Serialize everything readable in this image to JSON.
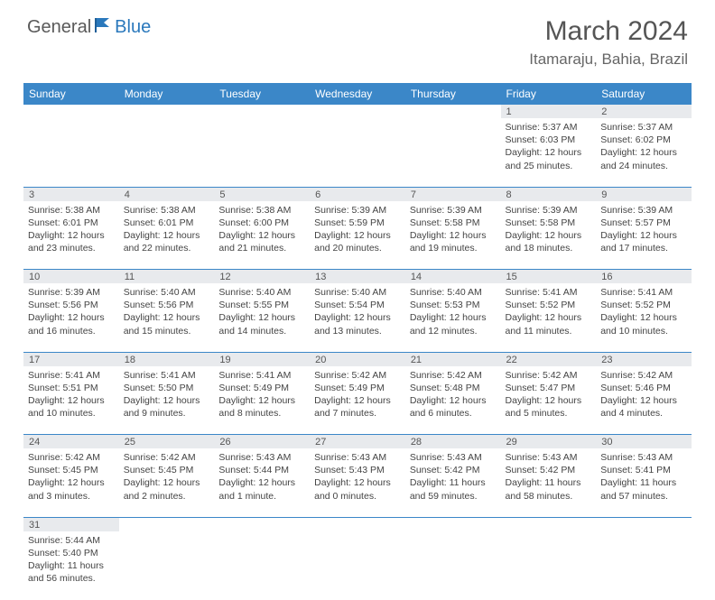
{
  "logo": {
    "general": "General",
    "blue": "Blue"
  },
  "title": "March 2024",
  "location": "Itamaraju, Bahia, Brazil",
  "daynames": [
    "Sunday",
    "Monday",
    "Tuesday",
    "Wednesday",
    "Thursday",
    "Friday",
    "Saturday"
  ],
  "colors": {
    "header_bg": "#3b87c8",
    "header_text": "#ffffff",
    "daynum_bg": "#e8eaed",
    "border": "#3b87c8",
    "logo_blue": "#2a78bc"
  },
  "weeks": [
    {
      "days": [
        {
          "n": "",
          "sunrise": "",
          "sunset": "",
          "daylight": ""
        },
        {
          "n": "",
          "sunrise": "",
          "sunset": "",
          "daylight": ""
        },
        {
          "n": "",
          "sunrise": "",
          "sunset": "",
          "daylight": ""
        },
        {
          "n": "",
          "sunrise": "",
          "sunset": "",
          "daylight": ""
        },
        {
          "n": "",
          "sunrise": "",
          "sunset": "",
          "daylight": ""
        },
        {
          "n": "1",
          "sunrise": "Sunrise: 5:37 AM",
          "sunset": "Sunset: 6:03 PM",
          "daylight": "Daylight: 12 hours and 25 minutes."
        },
        {
          "n": "2",
          "sunrise": "Sunrise: 5:37 AM",
          "sunset": "Sunset: 6:02 PM",
          "daylight": "Daylight: 12 hours and 24 minutes."
        }
      ]
    },
    {
      "days": [
        {
          "n": "3",
          "sunrise": "Sunrise: 5:38 AM",
          "sunset": "Sunset: 6:01 PM",
          "daylight": "Daylight: 12 hours and 23 minutes."
        },
        {
          "n": "4",
          "sunrise": "Sunrise: 5:38 AM",
          "sunset": "Sunset: 6:01 PM",
          "daylight": "Daylight: 12 hours and 22 minutes."
        },
        {
          "n": "5",
          "sunrise": "Sunrise: 5:38 AM",
          "sunset": "Sunset: 6:00 PM",
          "daylight": "Daylight: 12 hours and 21 minutes."
        },
        {
          "n": "6",
          "sunrise": "Sunrise: 5:39 AM",
          "sunset": "Sunset: 5:59 PM",
          "daylight": "Daylight: 12 hours and 20 minutes."
        },
        {
          "n": "7",
          "sunrise": "Sunrise: 5:39 AM",
          "sunset": "Sunset: 5:58 PM",
          "daylight": "Daylight: 12 hours and 19 minutes."
        },
        {
          "n": "8",
          "sunrise": "Sunrise: 5:39 AM",
          "sunset": "Sunset: 5:58 PM",
          "daylight": "Daylight: 12 hours and 18 minutes."
        },
        {
          "n": "9",
          "sunrise": "Sunrise: 5:39 AM",
          "sunset": "Sunset: 5:57 PM",
          "daylight": "Daylight: 12 hours and 17 minutes."
        }
      ]
    },
    {
      "days": [
        {
          "n": "10",
          "sunrise": "Sunrise: 5:39 AM",
          "sunset": "Sunset: 5:56 PM",
          "daylight": "Daylight: 12 hours and 16 minutes."
        },
        {
          "n": "11",
          "sunrise": "Sunrise: 5:40 AM",
          "sunset": "Sunset: 5:56 PM",
          "daylight": "Daylight: 12 hours and 15 minutes."
        },
        {
          "n": "12",
          "sunrise": "Sunrise: 5:40 AM",
          "sunset": "Sunset: 5:55 PM",
          "daylight": "Daylight: 12 hours and 14 minutes."
        },
        {
          "n": "13",
          "sunrise": "Sunrise: 5:40 AM",
          "sunset": "Sunset: 5:54 PM",
          "daylight": "Daylight: 12 hours and 13 minutes."
        },
        {
          "n": "14",
          "sunrise": "Sunrise: 5:40 AM",
          "sunset": "Sunset: 5:53 PM",
          "daylight": "Daylight: 12 hours and 12 minutes."
        },
        {
          "n": "15",
          "sunrise": "Sunrise: 5:41 AM",
          "sunset": "Sunset: 5:52 PM",
          "daylight": "Daylight: 12 hours and 11 minutes."
        },
        {
          "n": "16",
          "sunrise": "Sunrise: 5:41 AM",
          "sunset": "Sunset: 5:52 PM",
          "daylight": "Daylight: 12 hours and 10 minutes."
        }
      ]
    },
    {
      "days": [
        {
          "n": "17",
          "sunrise": "Sunrise: 5:41 AM",
          "sunset": "Sunset: 5:51 PM",
          "daylight": "Daylight: 12 hours and 10 minutes."
        },
        {
          "n": "18",
          "sunrise": "Sunrise: 5:41 AM",
          "sunset": "Sunset: 5:50 PM",
          "daylight": "Daylight: 12 hours and 9 minutes."
        },
        {
          "n": "19",
          "sunrise": "Sunrise: 5:41 AM",
          "sunset": "Sunset: 5:49 PM",
          "daylight": "Daylight: 12 hours and 8 minutes."
        },
        {
          "n": "20",
          "sunrise": "Sunrise: 5:42 AM",
          "sunset": "Sunset: 5:49 PM",
          "daylight": "Daylight: 12 hours and 7 minutes."
        },
        {
          "n": "21",
          "sunrise": "Sunrise: 5:42 AM",
          "sunset": "Sunset: 5:48 PM",
          "daylight": "Daylight: 12 hours and 6 minutes."
        },
        {
          "n": "22",
          "sunrise": "Sunrise: 5:42 AM",
          "sunset": "Sunset: 5:47 PM",
          "daylight": "Daylight: 12 hours and 5 minutes."
        },
        {
          "n": "23",
          "sunrise": "Sunrise: 5:42 AM",
          "sunset": "Sunset: 5:46 PM",
          "daylight": "Daylight: 12 hours and 4 minutes."
        }
      ]
    },
    {
      "days": [
        {
          "n": "24",
          "sunrise": "Sunrise: 5:42 AM",
          "sunset": "Sunset: 5:45 PM",
          "daylight": "Daylight: 12 hours and 3 minutes."
        },
        {
          "n": "25",
          "sunrise": "Sunrise: 5:42 AM",
          "sunset": "Sunset: 5:45 PM",
          "daylight": "Daylight: 12 hours and 2 minutes."
        },
        {
          "n": "26",
          "sunrise": "Sunrise: 5:43 AM",
          "sunset": "Sunset: 5:44 PM",
          "daylight": "Daylight: 12 hours and 1 minute."
        },
        {
          "n": "27",
          "sunrise": "Sunrise: 5:43 AM",
          "sunset": "Sunset: 5:43 PM",
          "daylight": "Daylight: 12 hours and 0 minutes."
        },
        {
          "n": "28",
          "sunrise": "Sunrise: 5:43 AM",
          "sunset": "Sunset: 5:42 PM",
          "daylight": "Daylight: 11 hours and 59 minutes."
        },
        {
          "n": "29",
          "sunrise": "Sunrise: 5:43 AM",
          "sunset": "Sunset: 5:42 PM",
          "daylight": "Daylight: 11 hours and 58 minutes."
        },
        {
          "n": "30",
          "sunrise": "Sunrise: 5:43 AM",
          "sunset": "Sunset: 5:41 PM",
          "daylight": "Daylight: 11 hours and 57 minutes."
        }
      ]
    },
    {
      "days": [
        {
          "n": "31",
          "sunrise": "Sunrise: 5:44 AM",
          "sunset": "Sunset: 5:40 PM",
          "daylight": "Daylight: 11 hours and 56 minutes."
        },
        {
          "n": "",
          "sunrise": "",
          "sunset": "",
          "daylight": ""
        },
        {
          "n": "",
          "sunrise": "",
          "sunset": "",
          "daylight": ""
        },
        {
          "n": "",
          "sunrise": "",
          "sunset": "",
          "daylight": ""
        },
        {
          "n": "",
          "sunrise": "",
          "sunset": "",
          "daylight": ""
        },
        {
          "n": "",
          "sunrise": "",
          "sunset": "",
          "daylight": ""
        },
        {
          "n": "",
          "sunrise": "",
          "sunset": "",
          "daylight": ""
        }
      ]
    }
  ]
}
